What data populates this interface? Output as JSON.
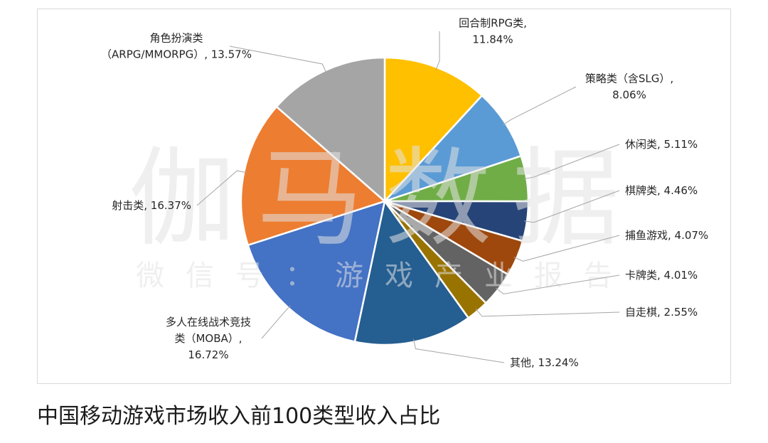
{
  "caption": "中国移动游戏市场收入前100类型收入占比",
  "watermark": {
    "main": "伽马数据",
    "sub": "微信号：游戏产业报告"
  },
  "chart_data": {
    "type": "pie",
    "start": "12 o'clock",
    "direction": "clockwise",
    "slices": [
      {
        "label_lines": [
          "回合制RPG类,",
          "11.84%"
        ],
        "value": 11.84,
        "color": "#FFC000"
      },
      {
        "label_lines": [
          "策略类（含SLG）,",
          "8.06%"
        ],
        "value": 8.06,
        "color": "#5B9BD5"
      },
      {
        "label_lines": [
          "休闲类, 5.11%"
        ],
        "value": 5.11,
        "color": "#70AD47"
      },
      {
        "label_lines": [
          "棋牌类, 4.46%"
        ],
        "value": 4.46,
        "color": "#264478"
      },
      {
        "label_lines": [
          "捕鱼游戏, 4.07%"
        ],
        "value": 4.07,
        "color": "#9E480E"
      },
      {
        "label_lines": [
          "卡牌类, 4.01%"
        ],
        "value": 4.01,
        "color": "#636363"
      },
      {
        "label_lines": [
          "自走棋, 2.55%"
        ],
        "value": 2.55,
        "color": "#997300"
      },
      {
        "label_lines": [
          "其他, 13.24%"
        ],
        "value": 13.24,
        "color": "#255E91"
      },
      {
        "label_lines": [
          "多人在线战术竞技",
          "类（MOBA）,",
          "16.72%"
        ],
        "value": 16.72,
        "color": "#4472C4"
      },
      {
        "label_lines": [
          "射击类, 16.37%"
        ],
        "value": 16.37,
        "color": "#ED7D31"
      },
      {
        "label_lines": [
          "角色扮演类",
          "（ARPG/MMORPG）, 13.57%"
        ],
        "value": 13.57,
        "color": "#A5A5A5"
      }
    ]
  }
}
